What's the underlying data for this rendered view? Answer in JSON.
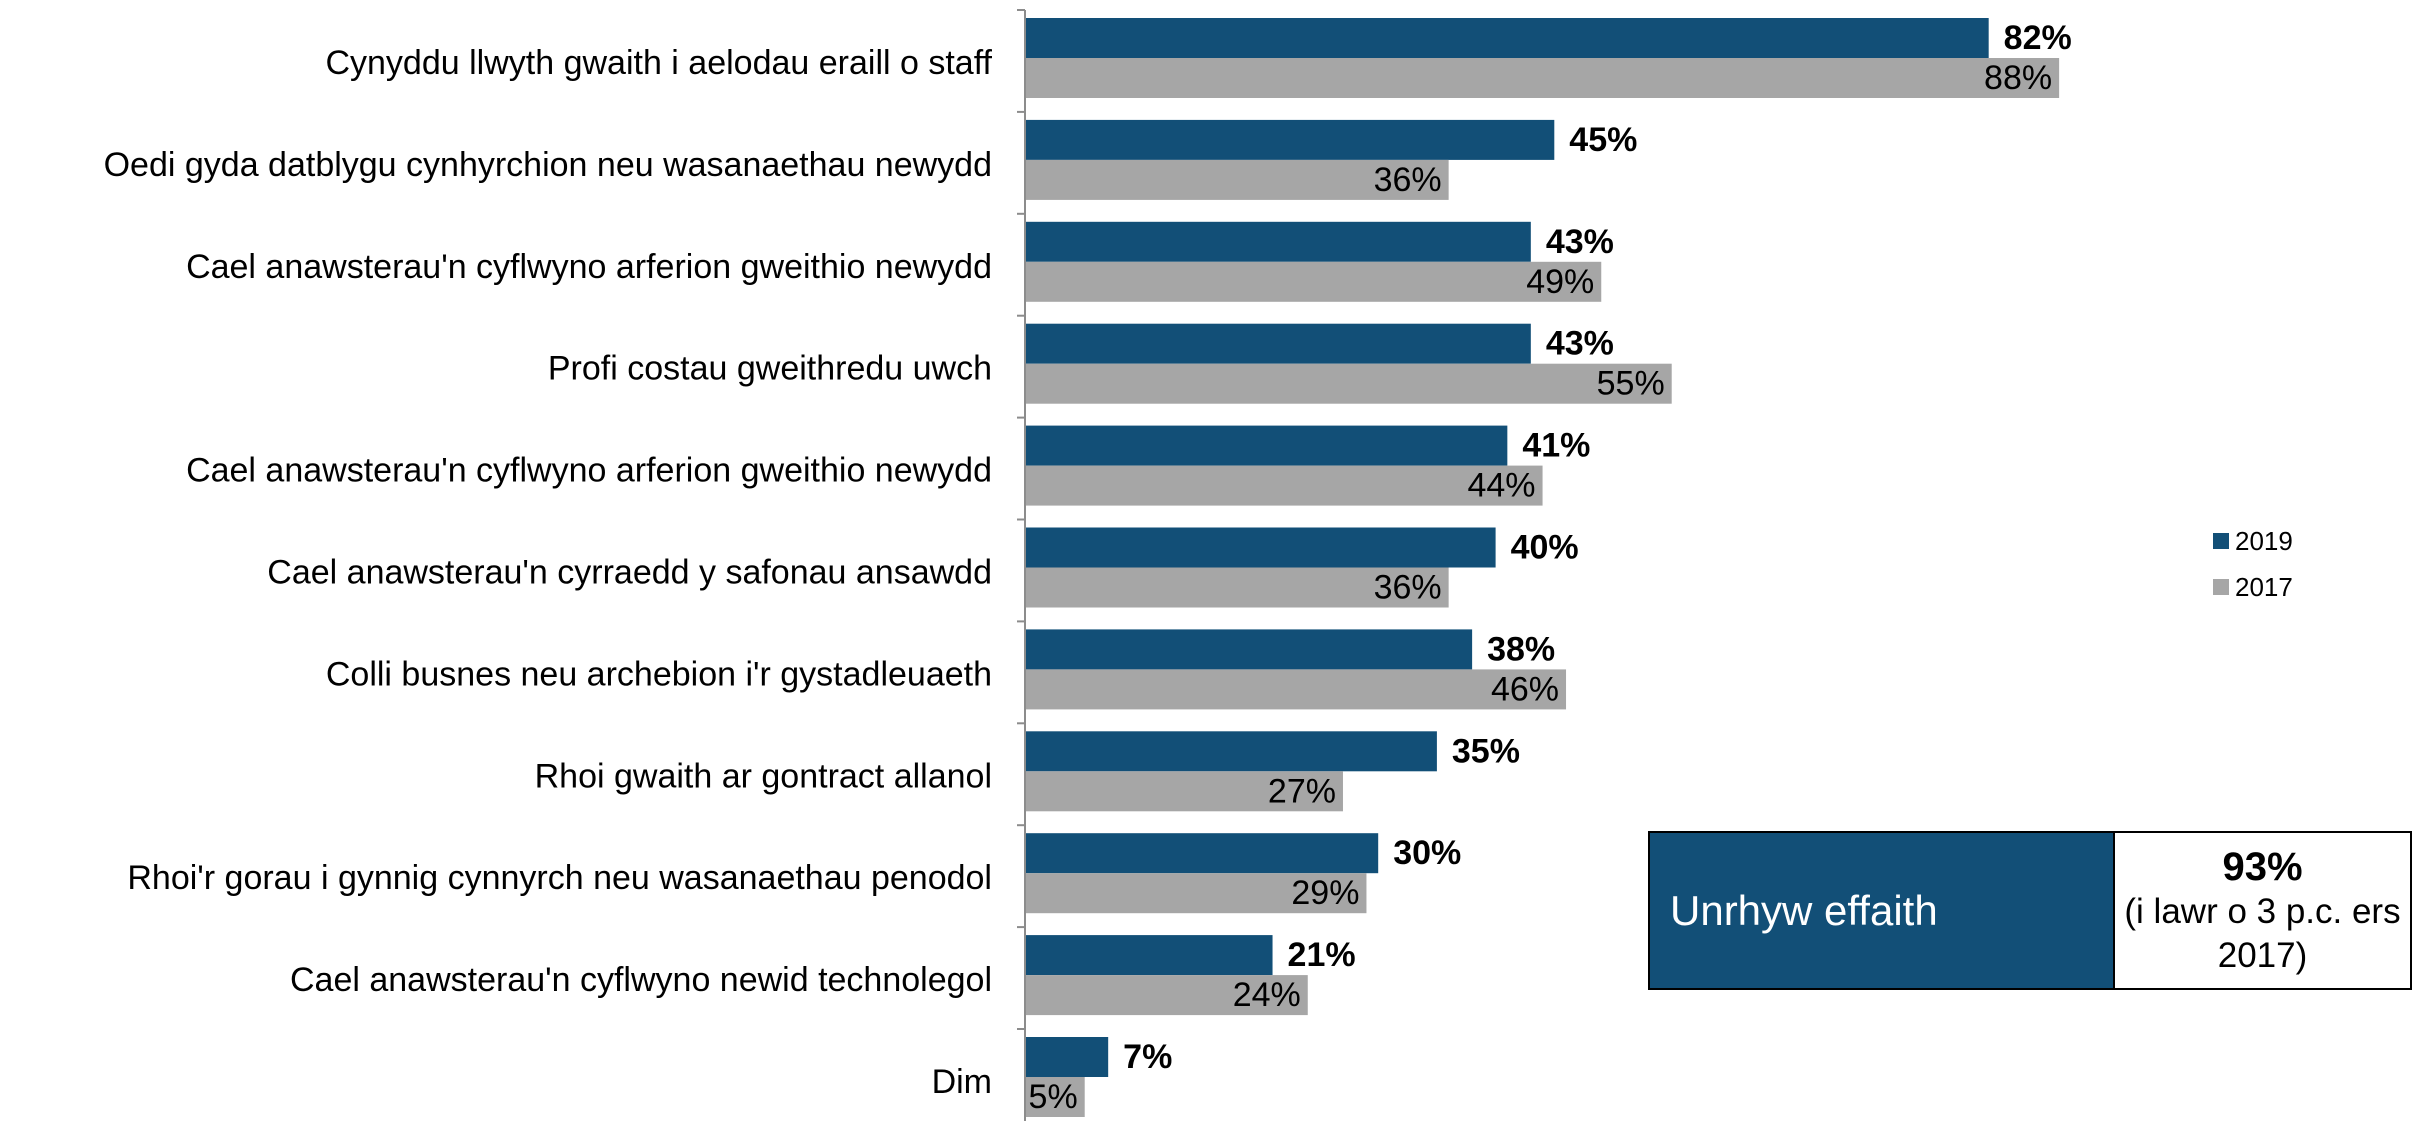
{
  "chart_data": {
    "type": "bar",
    "orientation": "horizontal",
    "categories": [
      "Cynyddu llwyth gwaith i aelodau eraill o staff",
      "Oedi gyda datblygu cynhyrchion neu wasanaethau newydd",
      "Cael anawsterau'n cyflwyno arferion gweithio newydd",
      "Profi costau gweithredu uwch",
      "Cael anawsterau'n cyflwyno arferion gweithio newydd",
      "Cael anawsterau'n cyrraedd y safonau ansawdd",
      "Colli busnes neu archebion i'r gystadleuaeth",
      "Rhoi gwaith ar gontract allanol",
      "Rhoi'r gorau i gynnig cynnyrch neu wasanaethau penodol",
      "Cael anawsterau'n cyflwyno newid technolegol",
      "Dim"
    ],
    "series": [
      {
        "name": "2019",
        "color": "#124f77",
        "values": [
          82,
          45,
          43,
          43,
          41,
          40,
          38,
          35,
          30,
          21,
          7
        ],
        "labels": [
          "82%",
          "45%",
          "43%",
          "43%",
          "41%",
          "40%",
          "38%",
          "35%",
          "30%",
          "21%",
          "7%"
        ]
      },
      {
        "name": "2017",
        "color": "#a6a6a6",
        "values": [
          88,
          36,
          49,
          55,
          44,
          36,
          46,
          27,
          29,
          24,
          5
        ],
        "labels": [
          "88%",
          "36%",
          "49%",
          "55%",
          "44%",
          "36%",
          "46%",
          "27%",
          "29%",
          "24%",
          "5%"
        ]
      }
    ],
    "xlim": [
      0,
      100
    ],
    "grid": false,
    "legend_position": "right",
    "callout": {
      "label": "Unrhyw effaith",
      "value": "93%",
      "note": "(i lawr o 3 p.c. ers 2017)"
    }
  }
}
